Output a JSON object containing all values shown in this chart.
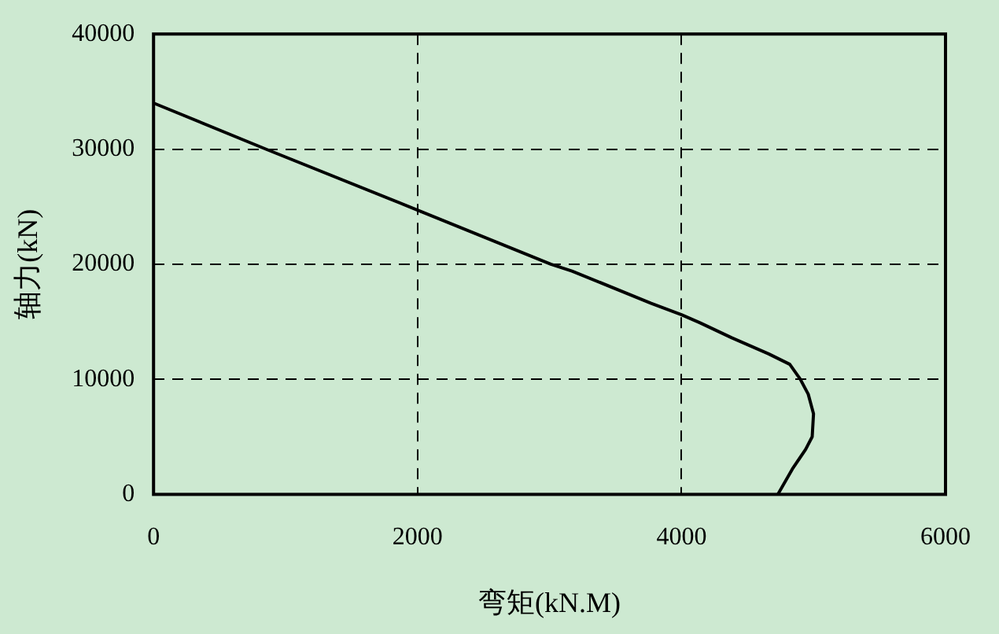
{
  "chart_data": {
    "type": "line",
    "xlabel": "弯矩(kN.M)",
    "ylabel": "轴力(kN)",
    "x": [
      0,
      850,
      2000,
      3010,
      3170,
      3770,
      4000,
      4140,
      4380,
      4660,
      4820,
      4900,
      4960,
      5000,
      4990,
      4940,
      4840,
      4730
    ],
    "values": [
      34000,
      30000,
      24700,
      20000,
      19400,
      16600,
      15600,
      14900,
      13600,
      12200,
      11300,
      10000,
      8700,
      7000,
      5000,
      3900,
      2200,
      0
    ],
    "color": "#000000",
    "xlim": [
      0,
      6000
    ],
    "xticks": [
      0,
      2000,
      4000,
      6000
    ],
    "ylim": [
      0,
      40000
    ],
    "yticks": [
      0,
      10000,
      20000,
      30000,
      40000
    ],
    "grid": true,
    "line_style": "solid",
    "marker": "none",
    "legend": false
  }
}
